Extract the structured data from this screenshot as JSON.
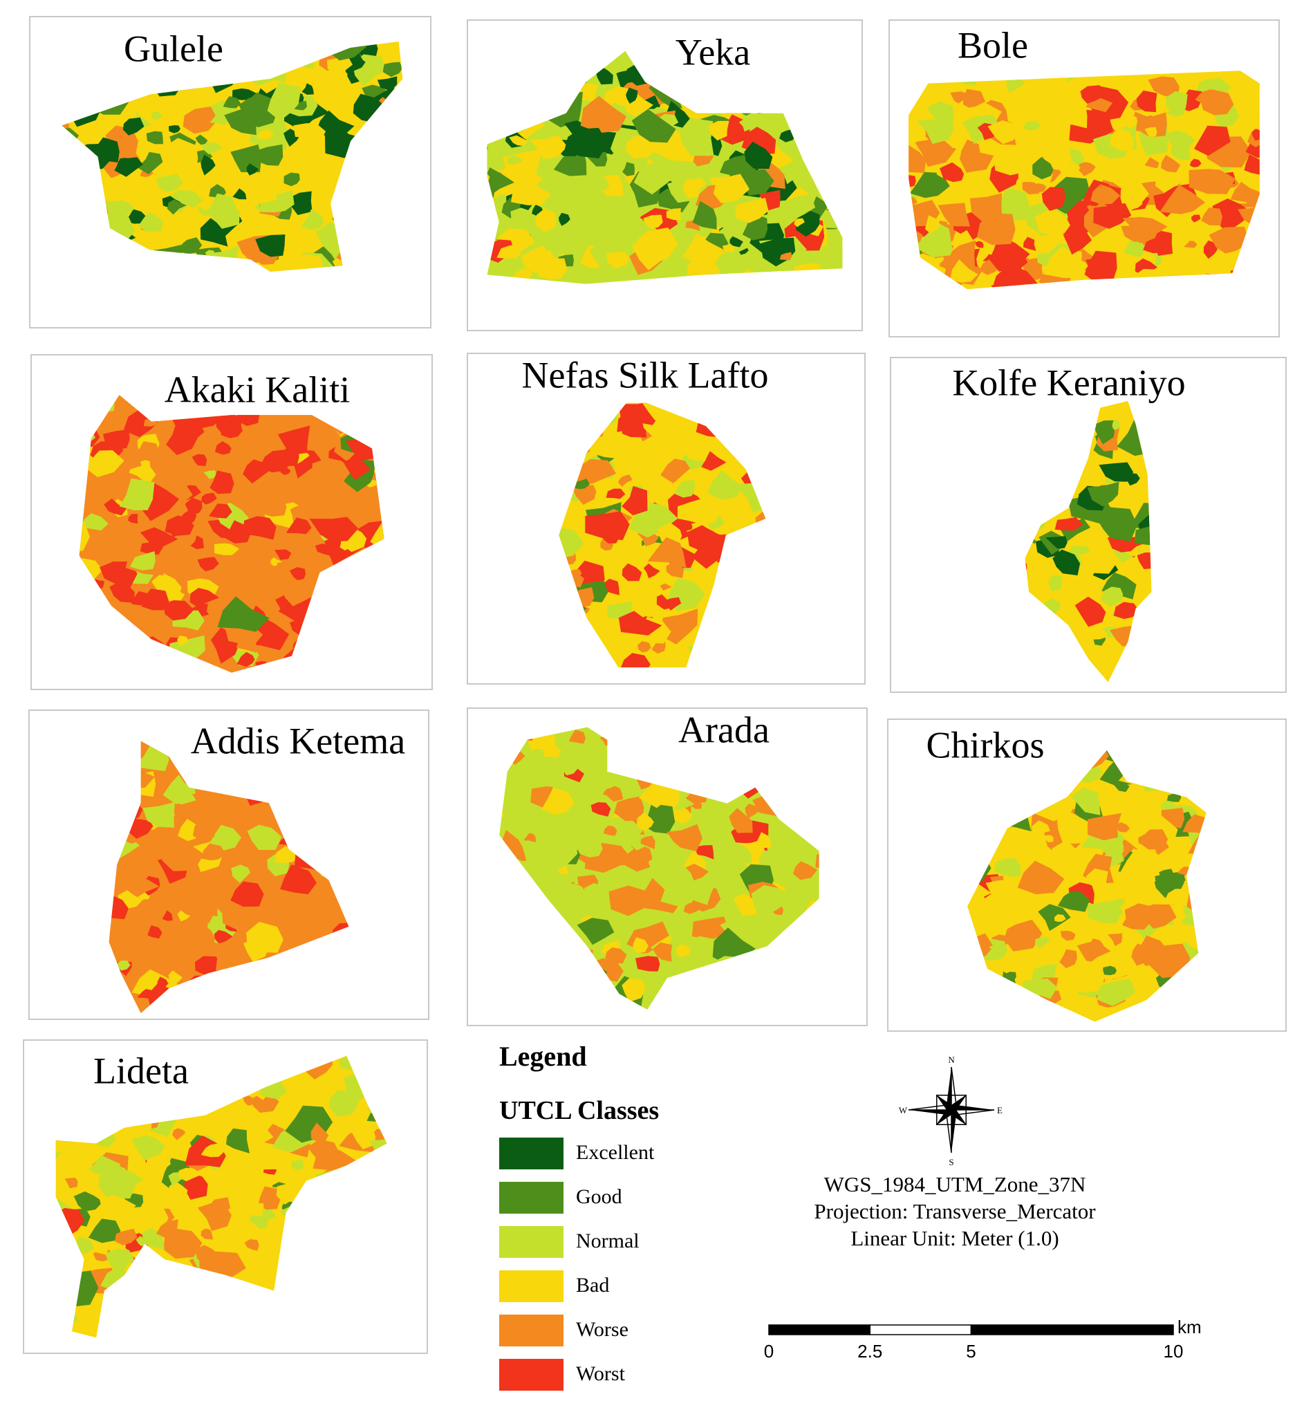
{
  "panels": [
    "Gulele",
    "Yeka",
    "Bole",
    "Akaki Kaliti",
    "Nefas Silk Lafto",
    "Kolfe Keraniyo",
    "Addis Ketema",
    "Arada",
    "Chirkos",
    "Lideta"
  ],
  "legend": {
    "title": "Legend",
    "subtitle": "UTCL Classes",
    "classes": [
      {
        "label": "Excellent",
        "color": "#0b5d14"
      },
      {
        "label": "Good",
        "color": "#4e8e1b"
      },
      {
        "label": "Normal",
        "color": "#c4e02c"
      },
      {
        "label": "Bad",
        "color": "#f8d70c"
      },
      {
        "label": "Worse",
        "color": "#f4891f"
      },
      {
        "label": "Worst",
        "color": "#f1341b"
      }
    ]
  },
  "compass": {
    "n": "N",
    "e": "E",
    "s": "S",
    "w": "W"
  },
  "projection": [
    "WGS_1984_UTM_Zone_37N",
    "Projection: Transverse_Mercator",
    "Linear Unit: Meter (1.0)"
  ],
  "scale_bar": {
    "ticks": [
      0,
      2.5,
      5,
      10
    ],
    "unit": "km"
  }
}
